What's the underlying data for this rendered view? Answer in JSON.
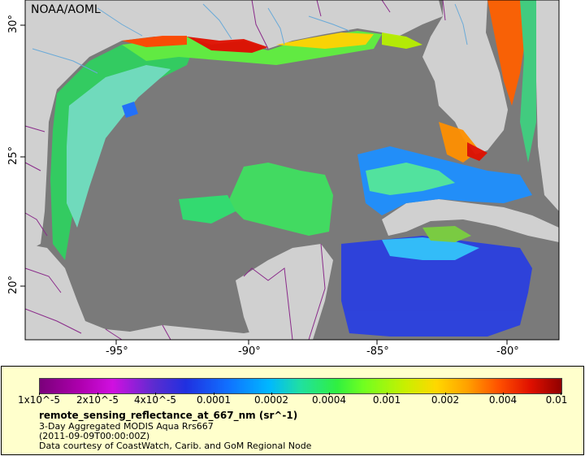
{
  "map": {
    "credit": "NOAA/AOML",
    "lat_labels": [
      "30°",
      "25°",
      "20°"
    ],
    "lon_labels": [
      "-95°",
      "-90°",
      "-85°",
      "-80°"
    ]
  },
  "legend": {
    "ticks": [
      "1x10^-5",
      "2x10^-5",
      "4x10^-5",
      "0.0001",
      "0.0002",
      "0.0004",
      "0.001",
      "0.002",
      "0.004",
      "0.01"
    ],
    "variable": "remote_sensing_reflectance_at_667_nm (sr^-1)",
    "dataset": "3-Day Aggregated MODIS Aqua Rrs667",
    "time": "(2011-09-09T00:00:00Z)",
    "source": "Data courtesy of CoastWatch, Carib. and GoM Regional Node"
  },
  "colors": {
    "land": "#d0d0d0",
    "no_data": "#7a7a7a",
    "border": "#8a2a8a",
    "river": "#6aaad8",
    "legend_bg": "#ffffcc"
  }
}
